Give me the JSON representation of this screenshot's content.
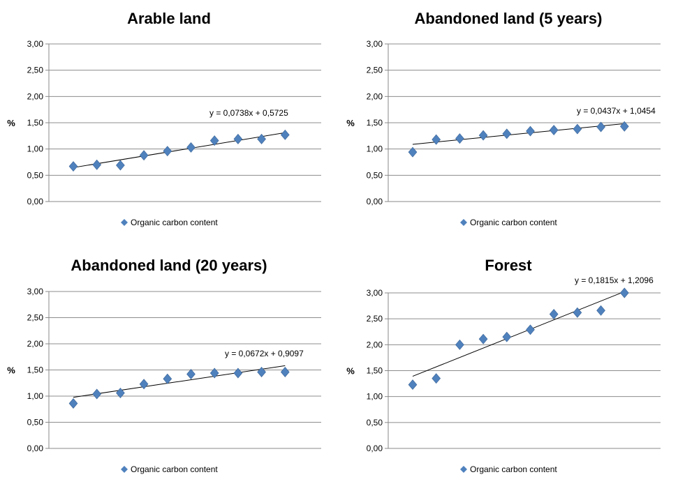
{
  "chart_data": [
    {
      "type": "scatter",
      "title": "Arable land",
      "ylabel": "%",
      "ylim": [
        0,
        3
      ],
      "yticks": [
        "0,00",
        "0,50",
        "1,00",
        "1,50",
        "2,00",
        "2,50",
        "3,00"
      ],
      "grid": true,
      "legend_position": "bottom",
      "series": [
        {
          "name": "Organic carbon content",
          "color": "#4f81bd",
          "x": [
            1,
            2,
            3,
            4,
            5,
            6,
            7,
            8,
            9,
            10
          ],
          "values": [
            0.67,
            0.7,
            0.69,
            0.88,
            0.96,
            1.03,
            1.16,
            1.19,
            1.19,
            1.27
          ]
        }
      ],
      "trendline": {
        "equation": "y = 0,0738x + 0,5725",
        "slope": 0.0738,
        "intercept": 0.5725
      }
    },
    {
      "type": "scatter",
      "title": "Abandoned land (5 years)",
      "ylabel": "%",
      "ylim": [
        0,
        3
      ],
      "yticks": [
        "0,00",
        "0,50",
        "1,00",
        "1,50",
        "2,00",
        "2,50",
        "3,00"
      ],
      "grid": true,
      "legend_position": "bottom",
      "series": [
        {
          "name": "Organic carbon content",
          "color": "#4f81bd",
          "x": [
            1,
            2,
            3,
            4,
            5,
            6,
            7,
            8,
            9,
            10
          ],
          "values": [
            0.94,
            1.18,
            1.2,
            1.26,
            1.29,
            1.34,
            1.36,
            1.38,
            1.42,
            1.43
          ]
        }
      ],
      "trendline": {
        "equation": "y = 0,0437x + 1,0454",
        "slope": 0.0437,
        "intercept": 1.0454
      }
    },
    {
      "type": "scatter",
      "title": "Abandoned land (20 years)",
      "ylabel": "%",
      "ylim": [
        0,
        3
      ],
      "yticks": [
        "0,00",
        "0,50",
        "1,00",
        "1,50",
        "2,00",
        "2,50",
        "3,00"
      ],
      "grid": true,
      "legend_position": "bottom",
      "series": [
        {
          "name": "Organic carbon content",
          "color": "#4f81bd",
          "x": [
            1,
            2,
            3,
            4,
            5,
            6,
            7,
            8,
            9,
            10
          ],
          "values": [
            0.86,
            1.04,
            1.06,
            1.23,
            1.33,
            1.42,
            1.44,
            1.44,
            1.46,
            1.46
          ]
        }
      ],
      "trendline": {
        "equation": "y = 0,0672x + 0,9097",
        "slope": 0.0672,
        "intercept": 0.9097
      }
    },
    {
      "type": "scatter",
      "title": "Forest",
      "ylabel": "%",
      "ylim": [
        0,
        3
      ],
      "yticks": [
        "0,00",
        "0,50",
        "1,00",
        "1,50",
        "2,00",
        "2,50",
        "3,00"
      ],
      "grid": true,
      "legend_position": "bottom",
      "series": [
        {
          "name": "Organic carbon content",
          "color": "#4f81bd",
          "x": [
            1,
            2,
            3,
            4,
            5,
            6,
            7,
            8,
            9,
            10
          ],
          "values": [
            1.23,
            1.35,
            2.0,
            2.11,
            2.15,
            2.29,
            2.59,
            2.62,
            2.66,
            3.0
          ]
        }
      ],
      "trendline": {
        "equation": "y = 0,1815x + 1,2096",
        "slope": 0.1815,
        "intercept": 1.2096
      }
    }
  ]
}
